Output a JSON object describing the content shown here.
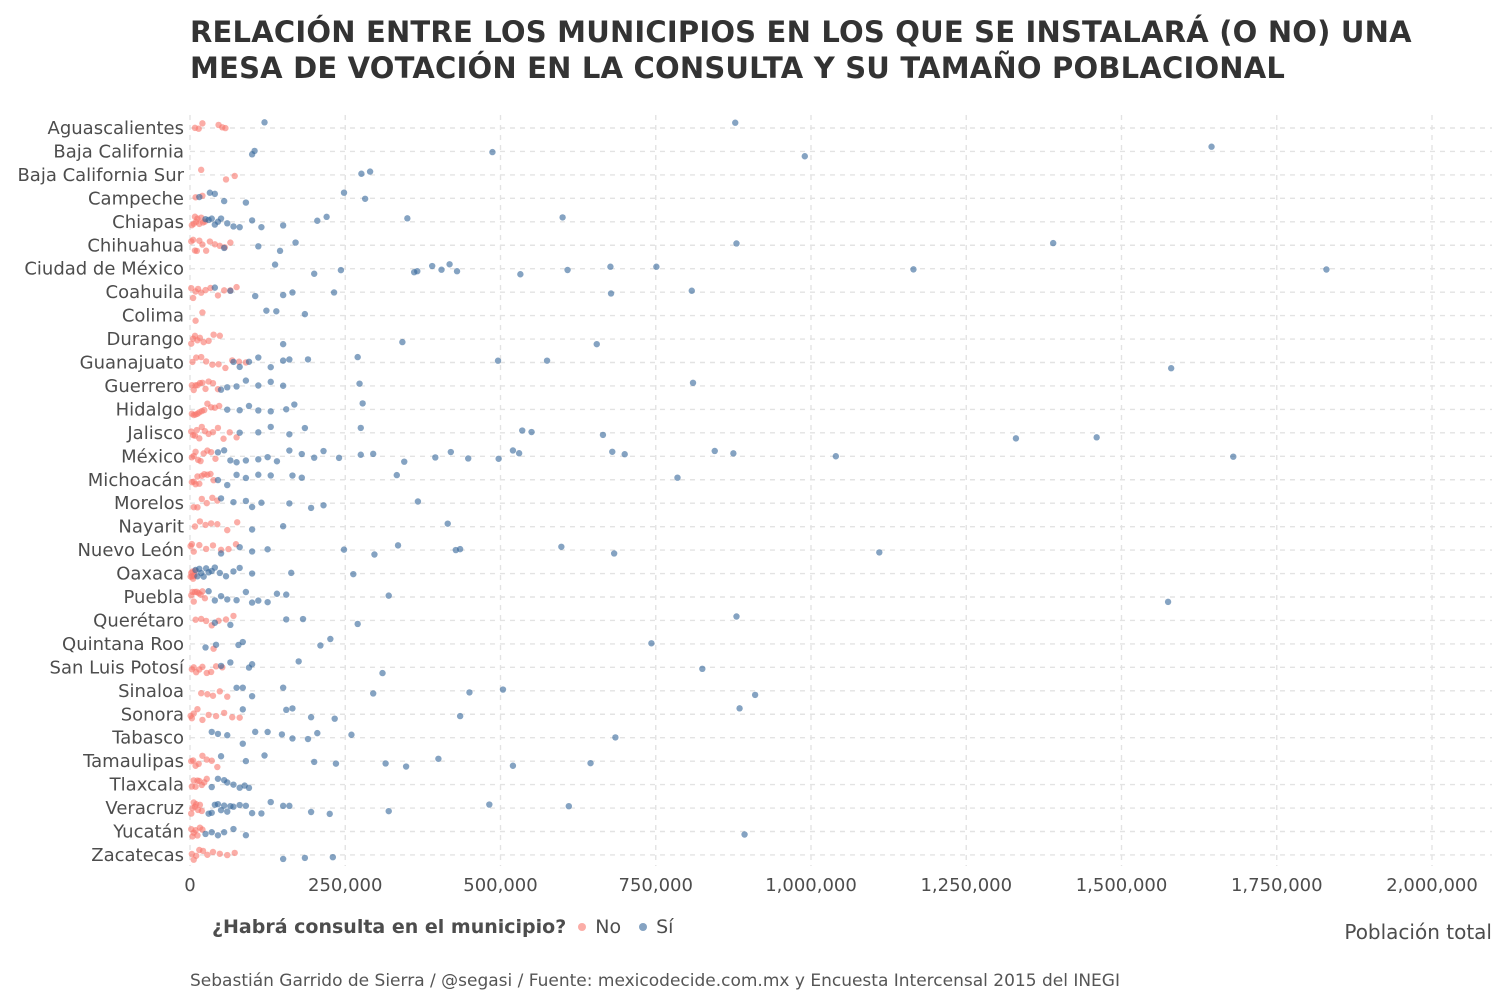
{
  "title": "RELACIÓN ENTRE LOS MUNICIPIOS EN LOS QUE SE INSTALARÁ (O NO) UNA MESA DE VOTACIÓN EN LA CONSULTA Y SU TAMAÑO POBLACIONAL",
  "caption": "Sebastián Garrido de Sierra / @segasi / Fuente: mexicodecide.com.mx y Encuesta Intercensal 2015 del INEGI",
  "legend": {
    "title": "¿Habrá consulta en el municipio?",
    "no_label": "No",
    "si_label": "Sí"
  },
  "colors": {
    "no": "#f8766d",
    "si": "#336699",
    "grid": "#e3e3e3",
    "text": "#4d4d4d"
  },
  "chart_data": {
    "type": "scatter",
    "xlabel": "Población total",
    "xlim": [
      0,
      2100000
    ],
    "xticks": [
      0,
      250000,
      500000,
      750000,
      1000000,
      1250000,
      1500000,
      1750000,
      2000000
    ],
    "xtick_labels": [
      "0",
      "250,000",
      "500,000",
      "750,000",
      "1,000,000",
      "1,250,000",
      "1,500,000",
      "1,750,000",
      "2,000,000"
    ],
    "categories": [
      "Aguascalientes",
      "Baja California",
      "Baja California Sur",
      "Campeche",
      "Chiapas",
      "Chihuahua",
      "Ciudad de México",
      "Coahuila",
      "Colima",
      "Durango",
      "Guanajuato",
      "Guerrero",
      "Hidalgo",
      "Jalisco",
      "México",
      "Michoacán",
      "Morelos",
      "Nayarit",
      "Nuevo León",
      "Oaxaca",
      "Puebla",
      "Querétaro",
      "Quintana Roo",
      "San Luis Potosí",
      "Sinaloa",
      "Sonora",
      "Tabasco",
      "Tamaulipas",
      "Tlaxcala",
      "Veracruz",
      "Yucatán",
      "Zacatecas"
    ],
    "series": [
      {
        "name": "No",
        "points": [
          [
            "Aguascalientes",
            [
              8000,
              14000,
              20000,
              46000,
              52000,
              57000
            ]
          ],
          [
            "Baja California Sur",
            [
              18000,
              58000,
              72000
            ]
          ],
          [
            "Campeche",
            [
              9000,
              20000
            ]
          ],
          [
            "Chiapas",
            [
              3000,
              6000,
              8000,
              10000,
              12000,
              15000,
              18000,
              21000,
              24000
            ]
          ],
          [
            "Chihuahua",
            [
              2000,
              5000,
              8000,
              11000,
              15000,
              20000,
              26000,
              32000,
              40000,
              48000,
              56000,
              65000
            ]
          ],
          [
            "Coahuila",
            [
              2000,
              5000,
              9000,
              13000,
              18000,
              25000,
              33000,
              45000,
              55000,
              65000,
              75000
            ]
          ],
          [
            "Colima",
            [
              9000,
              20000
            ]
          ],
          [
            "Durango",
            [
              2000,
              5000,
              8000,
              12000,
              16000,
              22000,
              30000,
              38000,
              48000
            ]
          ],
          [
            "Guanajuato",
            [
              4000,
              10000,
              18000,
              26000,
              36000,
              46000,
              57000,
              68000,
              79000,
              90000
            ]
          ],
          [
            "Guerrero",
            [
              3000,
              6000,
              9000,
              12000,
              16000,
              20000,
              25000,
              30000,
              37000,
              45000
            ]
          ],
          [
            "Hidalgo",
            [
              3000,
              6000,
              9000,
              12000,
              15000,
              19000,
              23000,
              28000,
              34000,
              40000,
              47000
            ]
          ],
          [
            "Jalisco",
            [
              2000,
              5000,
              8000,
              11000,
              15000,
              19000,
              24000,
              30000,
              37000,
              45000,
              54000,
              64000,
              75000
            ]
          ],
          [
            "México",
            [
              3000,
              6000,
              9000,
              13000,
              17000,
              22000,
              28000,
              34000,
              41000
            ]
          ],
          [
            "Michoacán",
            [
              3000,
              6000,
              9000,
              12000,
              15000,
              19000,
              23000,
              28000,
              33000,
              38000
            ]
          ],
          [
            "Morelos",
            [
              6000,
              12000,
              19000,
              27000,
              36000,
              44000
            ]
          ],
          [
            "Nayarit",
            [
              8000,
              16000,
              25000,
              34000,
              44000,
              60000,
              76000
            ]
          ],
          [
            "Nuevo León",
            [
              1000,
              3000,
              6000,
              15000,
              26000,
              37000,
              50000,
              62000,
              74000
            ]
          ],
          [
            "Oaxaca",
            [
              1000,
              2000,
              3000,
              4000,
              5000,
              6000,
              7000,
              8000
            ]
          ],
          [
            "Puebla",
            [
              2000,
              4000,
              6000,
              8000,
              11000,
              14000,
              17000,
              20000,
              24000
            ]
          ],
          [
            "Querétaro",
            [
              9000,
              18000,
              26000,
              35000,
              46000,
              58000,
              70000
            ]
          ],
          [
            "Quintana Roo",
            [
              38000
            ]
          ],
          [
            "San Luis Potosí",
            [
              3000,
              6000,
              10000,
              15000,
              20000,
              27000,
              34000,
              42000,
              52000
            ]
          ],
          [
            "Sinaloa",
            [
              18000,
              28000,
              37000,
              48000,
              60000
            ]
          ],
          [
            "Sonora",
            [
              1000,
              3000,
              6000,
              12000,
              20000,
              30000,
              42000,
              55000,
              68000,
              80000
            ]
          ],
          [
            "Tabasco",
            []
          ],
          [
            "Tamaulipas",
            [
              2000,
              5000,
              9000,
              14000,
              20000,
              27000,
              35000,
              44000
            ]
          ],
          [
            "Tlaxcala",
            [
              3000,
              6000,
              9000,
              12000,
              15000,
              19000,
              23000,
              27000
            ]
          ],
          [
            "Veracruz",
            [
              2000,
              4000,
              6000,
              8000,
              10000,
              13000,
              16000,
              19000
            ]
          ],
          [
            "Yucatán",
            [
              2000,
              4000,
              6000,
              9000,
              12000,
              16000,
              20000
            ]
          ],
          [
            "Zacatecas",
            [
              3000,
              6000,
              10000,
              15000,
              21000,
              28000,
              37000,
              48000,
              60000,
              72000
            ]
          ]
        ]
      },
      {
        "name": "Sí",
        "points": [
          [
            "Aguascalientes",
            [
              120000,
              878000
            ]
          ],
          [
            "Baja California",
            [
              100000,
              104000,
              487000,
              990000,
              1645000
            ]
          ],
          [
            "Baja California Sur",
            [
              276000,
              290000
            ]
          ],
          [
            "Campeche",
            [
              15000,
              32000,
              40000,
              55000,
              90000,
              248000,
              282000
            ]
          ],
          [
            "Chiapas",
            [
              25000,
              30000,
              35000,
              40000,
              45000,
              50000,
              60000,
              70000,
              80000,
              100000,
              115000,
              150000,
              205000,
              220000,
              350000,
              600000
            ]
          ],
          [
            "Chihuahua",
            [
              55000,
              110000,
              145000,
              170000,
              880000,
              1390000
            ]
          ],
          [
            "Ciudad de México",
            [
              137000,
              200000,
              243000,
              361000,
              366000,
              390000,
              405000,
              418000,
              430000,
              532000,
              608000,
              677000,
              751000,
              1165000,
              1830000
            ]
          ],
          [
            "Coahuila",
            [
              40000,
              65000,
              105000,
              150000,
              165000,
              232000,
              678000,
              808000
            ]
          ],
          [
            "Colima",
            [
              123000,
              139000,
              185000
            ]
          ],
          [
            "Durango",
            [
              150000,
              342000,
              655000
            ]
          ],
          [
            "Guanajuato",
            [
              70000,
              80000,
              95000,
              110000,
              130000,
              150000,
              160000,
              190000,
              270000,
              496000,
              575000,
              1580000
            ]
          ],
          [
            "Guerrero",
            [
              50000,
              60000,
              75000,
              90000,
              110000,
              130000,
              150000,
              273000,
              810000
            ]
          ],
          [
            "Hidalgo",
            [
              60000,
              80000,
              95000,
              110000,
              130000,
              155000,
              168000,
              278000
            ]
          ],
          [
            "Jalisco",
            [
              80000,
              110000,
              130000,
              160000,
              185000,
              275000,
              535000,
              550000,
              665000,
              1330000,
              1460000
            ]
          ],
          [
            "México",
            [
              45000,
              55000,
              65000,
              75000,
              90000,
              110000,
              125000,
              140000,
              160000,
              180000,
              200000,
              215000,
              240000,
              275000,
              295000,
              345000,
              395000,
              420000,
              448000,
              497000,
              520000,
              530000,
              680000,
              700000,
              845000,
              875000,
              1040000,
              1680000
            ]
          ],
          [
            "Michoacán",
            [
              45000,
              60000,
              75000,
              90000,
              110000,
              130000,
              165000,
              180000,
              333000,
              785000
            ]
          ],
          [
            "Morelos",
            [
              50000,
              70000,
              90000,
              100000,
              115000,
              160000,
              195000,
              215000,
              367000
            ]
          ],
          [
            "Nayarit",
            [
              100000,
              150000,
              415000
            ]
          ],
          [
            "Nuevo León",
            [
              50000,
              80000,
              100000,
              125000,
              248000,
              297000,
              335000,
              428000,
              435000,
              598000,
              683000,
              1110000
            ]
          ],
          [
            "Oaxaca",
            [
              9000,
              12000,
              15000,
              18000,
              22000,
              26000,
              30000,
              35000,
              40000,
              48000,
              58000,
              70000,
              80000,
              100000,
              163000,
              263000
            ]
          ],
          [
            "Puebla",
            [
              30000,
              40000,
              50000,
              60000,
              75000,
              90000,
              100000,
              110000,
              125000,
              140000,
              155000,
              320000,
              1575000
            ]
          ],
          [
            "Querétaro",
            [
              40000,
              65000,
              155000,
              182000,
              270000,
              880000
            ]
          ],
          [
            "Quintana Roo",
            [
              25000,
              42000,
              78000,
              85000,
              210000,
              226000,
              743000
            ]
          ],
          [
            "San Luis Potosí",
            [
              50000,
              65000,
              95000,
              100000,
              175000,
              310000,
              825000
            ]
          ],
          [
            "Sinaloa",
            [
              75000,
              85000,
              100000,
              150000,
              295000,
              450000,
              504000,
              910000
            ]
          ],
          [
            "Sonora",
            [
              85000,
              155000,
              165000,
              195000,
              233000,
              435000,
              885000
            ]
          ],
          [
            "Tabasco",
            [
              35000,
              45000,
              60000,
              85000,
              105000,
              125000,
              148000,
              165000,
              190000,
              205000,
              260000,
              685000
            ]
          ],
          [
            "Tamaulipas",
            [
              50000,
              90000,
              120000,
              200000,
              235000,
              315000,
              348000,
              400000,
              520000,
              645000
            ]
          ],
          [
            "Tlaxcala",
            [
              35000,
              45000,
              55000,
              60000,
              70000,
              80000,
              88000,
              95000
            ]
          ],
          [
            "Veracruz",
            [
              30000,
              35000,
              40000,
              45000,
              50000,
              55000,
              60000,
              65000,
              70000,
              80000,
              90000,
              100000,
              115000,
              130000,
              150000,
              160000,
              195000,
              225000,
              320000,
              482000,
              610000
            ]
          ],
          [
            "Yucatán",
            [
              25000,
              35000,
              45000,
              55000,
              70000,
              90000,
              893000
            ]
          ],
          [
            "Zacatecas",
            [
              150000,
              185000,
              230000
            ]
          ]
        ]
      }
    ]
  }
}
